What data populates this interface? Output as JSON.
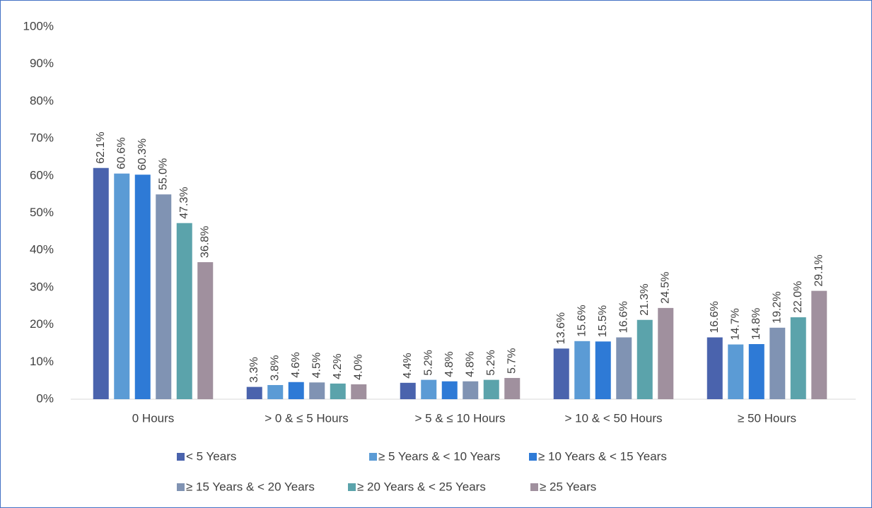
{
  "chart_data": {
    "type": "bar",
    "categories": [
      "0 Hours",
      "> 0 & ≤ 5 Hours",
      "> 5 & ≤ 10 Hours",
      "> 10 & < 50 Hours",
      "≥ 50 Hours"
    ],
    "series": [
      {
        "name": "< 5 Years",
        "color": "#4a63ad",
        "values": [
          62.1,
          3.3,
          4.4,
          13.6,
          16.6
        ],
        "value_labels": [
          "62.1%",
          "3.3%",
          "4.4%",
          "13.6%",
          "16.6%"
        ]
      },
      {
        "name": "≥ 5 Years & < 10 Years",
        "color": "#5b9bd5",
        "values": [
          60.6,
          3.8,
          5.2,
          15.6,
          14.7
        ],
        "value_labels": [
          "60.6%",
          "3.8%",
          "5.2%",
          "15.6%",
          "14.7%"
        ]
      },
      {
        "name": "≥ 10 Years & < 15 Years",
        "color": "#2e7ad6",
        "values": [
          60.3,
          4.6,
          4.8,
          15.5,
          14.8
        ],
        "value_labels": [
          "60.3%",
          "4.6%",
          "4.8%",
          "15.5%",
          "14.8%"
        ]
      },
      {
        "name": "≥ 15 Years & < 20 Years",
        "color": "#8093b3",
        "values": [
          55.0,
          4.5,
          4.8,
          16.6,
          19.2
        ],
        "value_labels": [
          "55.0%",
          "4.5%",
          "4.8%",
          "16.6%",
          "19.2%"
        ]
      },
      {
        "name": "≥ 20 Years & < 25 Years",
        "color": "#5ba3ab",
        "values": [
          47.3,
          4.2,
          5.2,
          21.3,
          22.0
        ],
        "value_labels": [
          "47.3%",
          "4.2%",
          "5.2%",
          "21.3%",
          "22.0%"
        ]
      },
      {
        "name": "≥ 25 Years",
        "color": "#a0909e",
        "values": [
          36.8,
          4.0,
          5.7,
          24.5,
          29.1
        ],
        "value_labels": [
          "36.8%",
          "4.0%",
          "5.7%",
          "24.5%",
          "29.1%"
        ]
      }
    ],
    "ylim": [
      0,
      100
    ],
    "yticks": [
      {
        "value": 0,
        "label": "0%"
      },
      {
        "value": 10,
        "label": "10%"
      },
      {
        "value": 20,
        "label": "20%"
      },
      {
        "value": 30,
        "label": "30%"
      },
      {
        "value": 40,
        "label": "40%"
      },
      {
        "value": 50,
        "label": "50%"
      },
      {
        "value": 60,
        "label": "60%"
      },
      {
        "value": 70,
        "label": "70%"
      },
      {
        "value": 80,
        "label": "80%"
      },
      {
        "value": 90,
        "label": "90%"
      },
      {
        "value": 100,
        "label": "100%"
      }
    ],
    "grid": false,
    "legend": "bottom"
  }
}
